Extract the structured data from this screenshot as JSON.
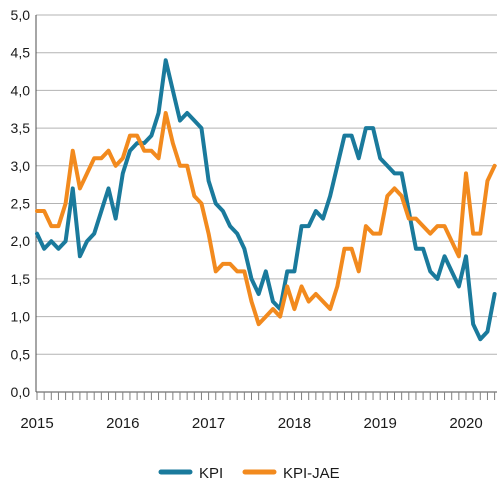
{
  "chart_data": {
    "type": "line",
    "title": "",
    "xlabel": "",
    "ylabel": "",
    "ylim": [
      0,
      5
    ],
    "y_ticks": [
      "0,0",
      "0,5",
      "1,0",
      "1,5",
      "2,0",
      "2,5",
      "3,0",
      "3,5",
      "4,0",
      "4,5",
      "5,0"
    ],
    "x_ticks": [
      "2015",
      "2016",
      "2017",
      "2018",
      "2019",
      "2020"
    ],
    "x_start": "2015-01",
    "x_end": "2020-04",
    "grid": "horizontal",
    "legend_position": "bottom",
    "series": [
      {
        "name": "KPI",
        "color": "#1a7a9c",
        "values": [
          2.1,
          1.9,
          2.0,
          1.9,
          2.0,
          2.7,
          1.8,
          2.0,
          2.1,
          2.4,
          2.7,
          2.3,
          2.9,
          3.2,
          3.3,
          3.3,
          3.4,
          3.7,
          4.4,
          4.0,
          3.6,
          3.7,
          3.6,
          3.5,
          2.8,
          2.5,
          2.4,
          2.2,
          2.1,
          1.9,
          1.5,
          1.3,
          1.6,
          1.2,
          1.1,
          1.6,
          1.6,
          2.2,
          2.2,
          2.4,
          2.3,
          2.6,
          3.0,
          3.4,
          3.4,
          3.1,
          3.5,
          3.5,
          3.1,
          3.0,
          2.9,
          2.9,
          2.4,
          1.9,
          1.9,
          1.6,
          1.5,
          1.8,
          1.6,
          1.4,
          1.8,
          0.9,
          0.7,
          0.8,
          1.3
        ]
      },
      {
        "name": "KPI-JAE",
        "color": "#f28a1e",
        "values": [
          2.4,
          2.4,
          2.2,
          2.2,
          2.5,
          3.2,
          2.7,
          2.9,
          3.1,
          3.1,
          3.2,
          3.0,
          3.1,
          3.4,
          3.4,
          3.2,
          3.2,
          3.1,
          3.7,
          3.3,
          3.0,
          3.0,
          2.6,
          2.5,
          2.1,
          1.6,
          1.7,
          1.7,
          1.6,
          1.6,
          1.2,
          0.9,
          1.0,
          1.1,
          1.0,
          1.4,
          1.1,
          1.4,
          1.2,
          1.3,
          1.2,
          1.1,
          1.4,
          1.9,
          1.9,
          1.6,
          2.2,
          2.1,
          2.1,
          2.6,
          2.7,
          2.6,
          2.3,
          2.3,
          2.2,
          2.1,
          2.2,
          2.2,
          2.0,
          1.8,
          2.9,
          2.1,
          2.1,
          2.8,
          3.0
        ]
      }
    ]
  }
}
